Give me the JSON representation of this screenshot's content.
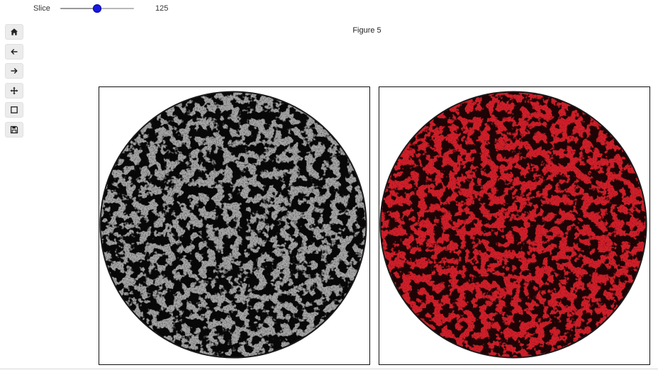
{
  "slider": {
    "label": "Slice",
    "value": "125",
    "fraction": 0.5,
    "thumb_color": "#1818e0"
  },
  "figure": {
    "title": "Figure 5"
  },
  "toolbar": {
    "buttons": [
      {
        "name": "home-icon"
      },
      {
        "name": "back-arrow-icon"
      },
      {
        "name": "forward-arrow-icon"
      },
      {
        "name": "pan-move-icon"
      },
      {
        "name": "zoom-rect-icon"
      },
      {
        "name": "save-disk-icon"
      }
    ]
  },
  "panels": {
    "left": {
      "kind": "grayscale-slice",
      "base_color": "#a9a9a9",
      "pore_color": "#3a3a3a"
    },
    "right": {
      "kind": "red-overlay-slice",
      "base_color": "#d41f2a",
      "pore_color": "#4a3a3c"
    }
  }
}
